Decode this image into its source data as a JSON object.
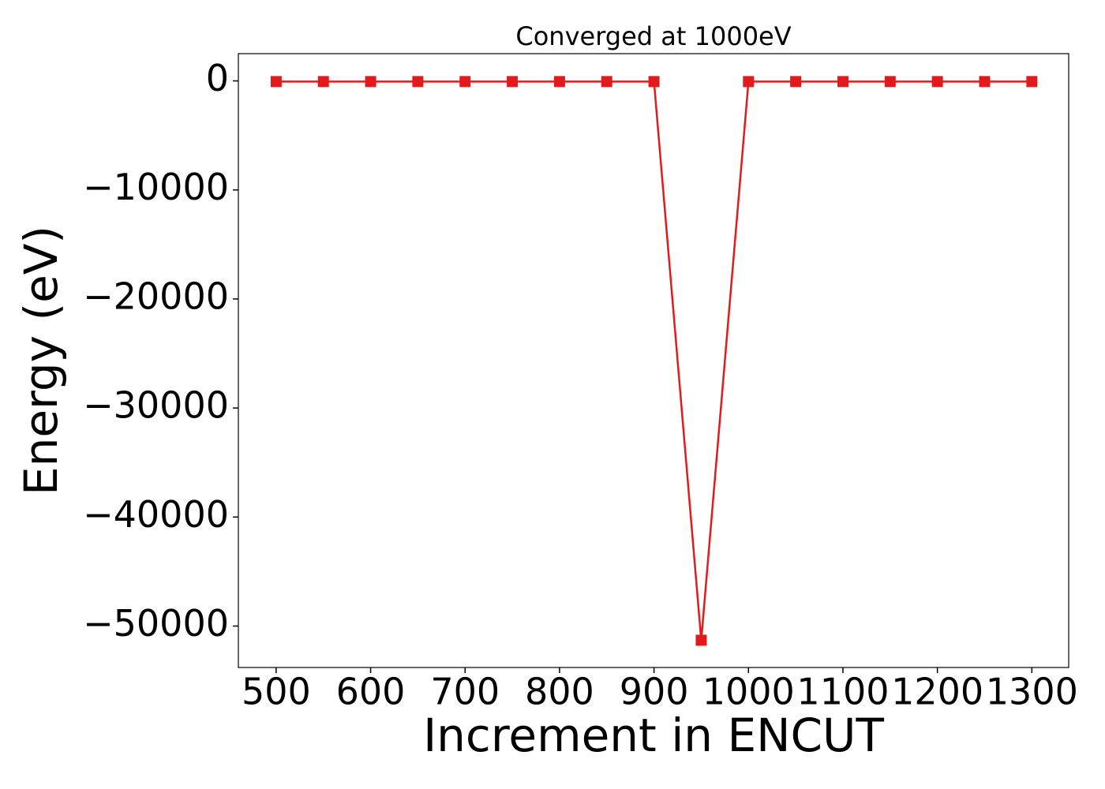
{
  "chart_data": {
    "type": "line",
    "title": "Converged at 1000eV",
    "x_label": "Increment in ENCUT",
    "y_label": "Energy (eV)",
    "x": [
      500,
      550,
      600,
      650,
      700,
      750,
      800,
      850,
      900,
      950,
      1000,
      1050,
      1100,
      1150,
      1200,
      1250,
      1300
    ],
    "series": [
      {
        "name": "Energy",
        "color": "#e31a1c",
        "values": [
          -60,
          -60,
          -60,
          -60,
          -60,
          -60,
          -60,
          -60,
          -60,
          -51300,
          -60,
          -60,
          -60,
          -60,
          -60,
          -60,
          -60
        ]
      }
    ],
    "xlim": [
      460,
      1339
    ],
    "ylim": [
      -53800,
      2500
    ],
    "xticks": [
      500,
      600,
      700,
      800,
      900,
      1000,
      1100,
      1200,
      1300
    ],
    "yticks": [
      {
        "value": -50000,
        "label": "−50000"
      },
      {
        "value": -40000,
        "label": "−40000"
      },
      {
        "value": -30000,
        "label": "−30000"
      },
      {
        "value": -20000,
        "label": "−20000"
      },
      {
        "value": -10000,
        "label": "−10000"
      },
      0
    ],
    "grid": false
  }
}
